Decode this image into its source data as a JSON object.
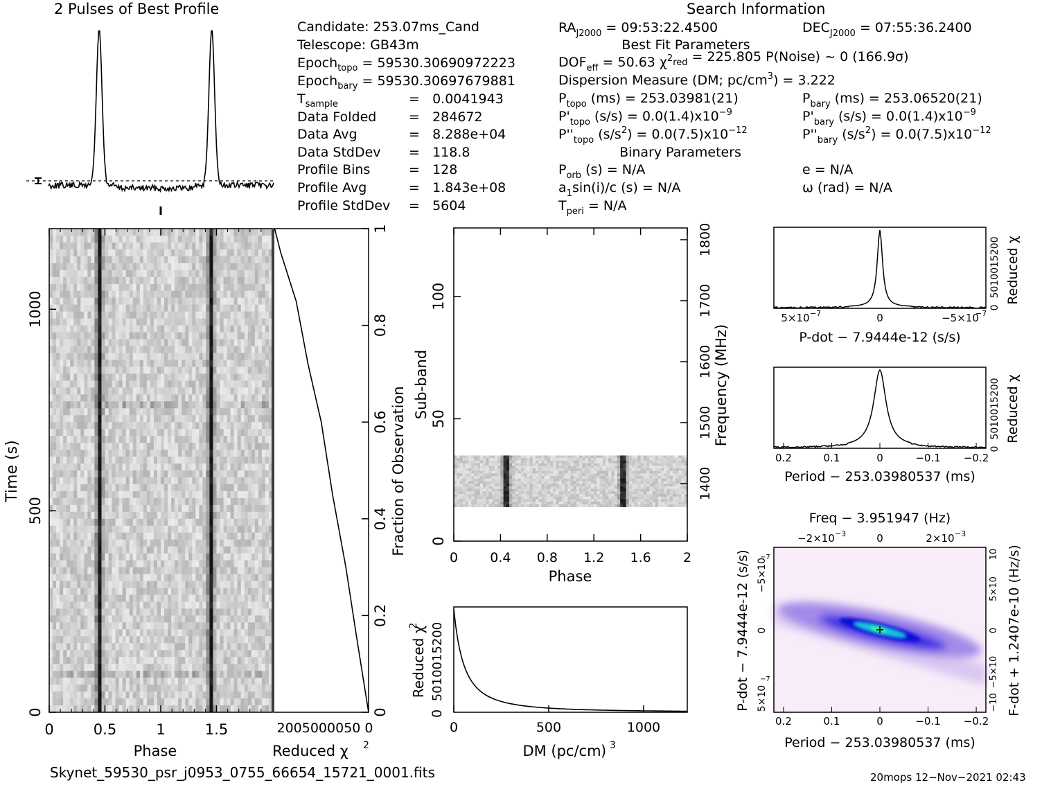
{
  "header": {
    "profile_title": "2 Pulses of Best Profile",
    "search_title": "Search Information"
  },
  "info_left": [
    {
      "label": "Candidate:",
      "value": "253.07ms_Cand"
    },
    {
      "label": "Telescope:",
      "value": "GB43m"
    },
    {
      "label": "Epoch",
      "sub": "topo",
      "value": "= 59530.30690972223"
    },
    {
      "label": "Epoch",
      "sub": "bary",
      "value": "= 59530.30697679881"
    },
    {
      "label": "T",
      "sub": "sample",
      "value": "=   0.0041943"
    },
    {
      "label": "Data Folded",
      "value": "=   284672"
    },
    {
      "label": "Data Avg",
      "value": "=   8.288e+04"
    },
    {
      "label": "Data StdDev",
      "value": "=   118.8"
    },
    {
      "label": "Profile Bins",
      "value": "=   128"
    },
    {
      "label": "Profile Avg",
      "value": "=   1.843e+08"
    },
    {
      "label": "Profile StdDev",
      "value": "=   5604"
    }
  ],
  "info_mid": {
    "ra": "= 09:53:22.4500",
    "best_fit_title": "Best Fit Parameters",
    "dof": "DOF",
    "dof_value": "= 50.63",
    "chi2red_value": "= 225.805",
    "pnoise": "P(Noise) ~ 0",
    "sigma": "(166.9σ)",
    "dm_line": "Dispersion Measure (DM; pc/cm",
    "dm_value": ") = 3.222",
    "ptopo_value": "(ms) =  253.03981(21)",
    "pdot_topo_value": "(s/s) = 0.0(1.4)x10",
    "pdot_topo_exp": "−9",
    "pddot_topo_value": "(s/s",
    "pddot_topo_tail": ") = 0.0(7.5)x10",
    "pddot_topo_exp": "−12",
    "binary_title": "Binary Parameters",
    "porb": "(s) = N/A",
    "a1sini": "sin(i)/c (s) = N/A",
    "tperi": "= N/A"
  },
  "info_right": {
    "dec": "= 07:55:36.2400",
    "pbary_value": "(ms) =  253.06520(21)",
    "pdot_bary_value": "(s/s) = 0.0(1.4)x10",
    "pdot_bary_exp": "−9",
    "pddot_bary_value": "(s/s",
    "pddot_bary_tail": ") = 0.0(7.5)x10",
    "pddot_bary_exp": "−12",
    "ecc": "e = N/A",
    "omega": "ω (rad) = N/A"
  },
  "axes": {
    "time_phase": {
      "xlabel": "Phase",
      "ylabel": "Time (s)",
      "xticks": [
        "0",
        "0.5",
        "1",
        "1.5"
      ],
      "yticks": [
        "0",
        "500",
        "1000"
      ]
    },
    "time_chi2": {
      "xlabel": "Reduced χ",
      "right_label": "Fraction of Observation",
      "xticks_text": "2005000050 0",
      "yticks": [
        "0",
        "0.2",
        "0.4",
        "0.6",
        "0.8",
        "1"
      ]
    },
    "subband": {
      "xlabel": "Phase",
      "ylabel": "Sub-band",
      "right_label": "Frequency (MHz)",
      "xticks": [
        "0",
        "0.4",
        "0.8",
        "1.2",
        "1.6",
        "2"
      ],
      "yticks": [
        "0",
        "50",
        "100"
      ],
      "freq_ticks": [
        "1400",
        "1500",
        "1600",
        "1700",
        "1800"
      ]
    },
    "dm": {
      "xlabel": "DM (pc/cm",
      "ylabel": "Reduced χ",
      "yticks_text": "5010015200",
      "xticks": [
        "0",
        "500",
        "1000"
      ],
      "y0": "0"
    },
    "pdot": {
      "xlabel": "P-dot − 7.9444e-12 (s/s)",
      "ylabel": "Reduced χ",
      "xticks": [
        "5×10",
        "0",
        "−5×10"
      ],
      "exp": "−7",
      "yticks_text": "5010015200",
      "y0": "0"
    },
    "period": {
      "xlabel": "Period − 253.03980537 (ms)",
      "ylabel": "Reduced χ",
      "xticks": [
        "0.2",
        "0.1",
        "0",
        "−0.1",
        "−0.2"
      ],
      "yticks_text": "5010015200",
      "y0": "0"
    },
    "pp": {
      "top_label": "Freq − 3.951947 (Hz)",
      "xlabel": "Period − 253.03980537 (ms)",
      "ylabel": "P-dot − 7.9444e-12 (s/s)",
      "right_label": "F-dot + 1.2407e-10 (Hz/s)",
      "xticks": [
        "0.2",
        "0.1",
        "0",
        "−0.1",
        "−0.2"
      ],
      "top_ticks": [
        "−2×10",
        "0",
        "2×10"
      ],
      "top_exp": "−3",
      "yticks": [
        "5×10",
        "0",
        "−5×10"
      ],
      "yexp": "−7",
      "rticks": [
        "−10",
        "−5×10",
        "0",
        "5×10",
        "10"
      ],
      "rexp": "−8"
    }
  },
  "footer": {
    "filename": "Skynet_59530_psr_j0953_0755_66654_15721_0001.fits",
    "stamp": "20mops 12−Nov−2021 02:43"
  },
  "chart_data": [
    {
      "type": "line",
      "title": "2 Pulses of Best Profile",
      "x": [
        0,
        0.25,
        0.4,
        0.44,
        0.46,
        0.5,
        0.6,
        1.0,
        1.25,
        1.4,
        1.44,
        1.46,
        1.5,
        1.6,
        2.0
      ],
      "y": [
        0.0,
        0.0,
        0.12,
        1.0,
        1.0,
        0.12,
        0.0,
        0.0,
        0.0,
        0.12,
        1.0,
        1.0,
        0.12,
        0.0,
        0.0
      ],
      "pulse_phases": [
        0.45,
        1.45
      ]
    },
    {
      "type": "heatmap",
      "xlabel": "Phase",
      "ylabel": "Time (s)",
      "xlim": [
        0,
        2
      ],
      "ylim": [
        0,
        1200
      ],
      "pulse_phases": [
        0.45,
        1.45
      ]
    },
    {
      "type": "line",
      "xlabel": "Reduced χ2",
      "ylabel": "Fraction of Observation",
      "x": [
        0,
        30,
        60,
        90,
        120,
        150,
        180,
        210,
        230
      ],
      "y": [
        0,
        0.15,
        0.3,
        0.45,
        0.6,
        0.72,
        0.85,
        0.95,
        1.0
      ],
      "ylim": [
        0,
        1
      ]
    },
    {
      "type": "heatmap",
      "xlabel": "Phase",
      "ylabel": "Sub-band",
      "xlim": [
        0,
        2
      ],
      "ylim": [
        0,
        128
      ],
      "filled_subbands": [
        14,
        35
      ],
      "pulse_phases": [
        0.45,
        1.45
      ],
      "freq_ticks": [
        1400,
        1500,
        1600,
        1700,
        1800
      ]
    },
    {
      "type": "line",
      "xlabel": "DM (pc/cm3)",
      "ylabel": "Reduced χ2",
      "x": [
        0,
        50,
        100,
        200,
        300,
        400,
        600,
        800,
        1000,
        1200
      ],
      "y": [
        225,
        170,
        120,
        65,
        38,
        24,
        11,
        5,
        2,
        1
      ],
      "xlim": [
        0,
        1230
      ],
      "ylim": [
        0,
        230
      ]
    },
    {
      "type": "line",
      "xlabel": "P-dot − 7.9444e-12 (s/s)",
      "ylabel": "Reduced χ2",
      "x": [
        7e-07,
        3e-07,
        1e-07,
        3e-08,
        0,
        -3e-08,
        -1e-07,
        -3e-07,
        -7e-07
      ],
      "y": [
        2,
        5,
        15,
        60,
        225,
        60,
        15,
        5,
        2
      ],
      "xlim": [
        7e-07,
        -7e-07
      ],
      "ylim": [
        0,
        230
      ]
    },
    {
      "type": "line",
      "xlabel": "Period − 253.03980537 (ms)",
      "ylabel": "Reduced χ2",
      "x": [
        0.22,
        0.1,
        0.05,
        0.02,
        0,
        -0.02,
        -0.05,
        -0.1,
        -0.22
      ],
      "y": [
        1,
        8,
        25,
        80,
        225,
        80,
        25,
        8,
        1
      ],
      "xlim": [
        0.22,
        -0.22
      ],
      "ylim": [
        0,
        230
      ]
    },
    {
      "type": "heatmap",
      "xlabel": "Period − 253.03980537 (ms)",
      "ylabel": "P-dot − 7.9444e-12 (s/s)",
      "xlim": [
        0.22,
        -0.22
      ],
      "ylim": [
        7e-07,
        -7e-07
      ],
      "peak": [
        0,
        0
      ]
    }
  ]
}
